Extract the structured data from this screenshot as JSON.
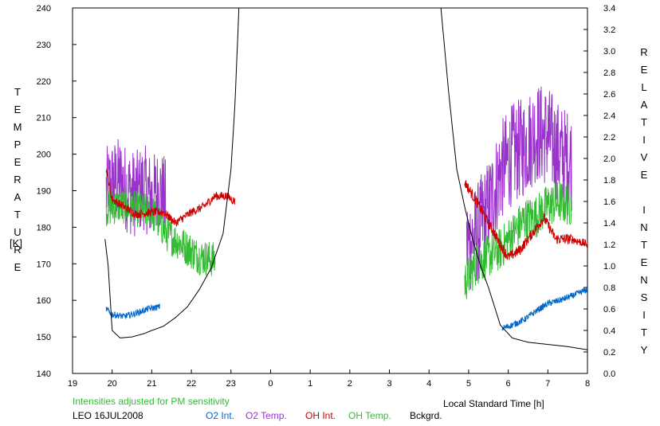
{
  "chart_data": {
    "type": "line",
    "left_axis_label_letters": [
      "T",
      "E",
      "M",
      "P",
      "E",
      "R",
      "A",
      "T",
      "U",
      "R",
      "E"
    ],
    "left_axis_unit": "[K]",
    "right_axis_label_letters": [
      "R",
      "E",
      "L",
      "A",
      "T",
      "I",
      "V",
      "E",
      "",
      "I",
      "N",
      "T",
      "E",
      "N",
      "S",
      "I",
      "T",
      "Y"
    ],
    "xlabel": "Local Standard Time [h]",
    "note": "Intensities adjusted for PM sensitivity",
    "station": "LEO 16JUL2008",
    "legend": [
      {
        "name": "O2 Int.",
        "color": "#0066cc"
      },
      {
        "name": "O2 Temp.",
        "color": "#9933cc"
      },
      {
        "name": "OH Int.",
        "color": "#cc0000"
      },
      {
        "name": "OH Temp.",
        "color": "#33bb33"
      },
      {
        "name": "Bckgrd.",
        "color": "#000000"
      }
    ],
    "x_ticks": [
      "19",
      "20",
      "21",
      "22",
      "23",
      "0",
      "1",
      "2",
      "3",
      "4",
      "5",
      "6",
      "7",
      "8"
    ],
    "x_range": [
      19,
      32
    ],
    "y_left_ticks": [
      "140",
      "150",
      "160",
      "170",
      "180",
      "190",
      "200",
      "210",
      "220",
      "230",
      "240"
    ],
    "y_left_range": [
      140,
      240
    ],
    "y_right_ticks": [
      "0.0",
      "0.2",
      "0.4",
      "0.6",
      "0.8",
      "1.0",
      "1.2",
      "1.4",
      "1.6",
      "1.8",
      "2.0",
      "2.2",
      "2.4",
      "2.6",
      "2.8",
      "3.0",
      "3.2",
      "3.4"
    ],
    "y_right_range": [
      0,
      3.4
    ],
    "series": [
      {
        "name": "O2 Temp.",
        "axis": "left",
        "color": "#9933cc",
        "segments": [
          {
            "x": [
              19.85,
              20.0,
              20.2,
              20.4,
              20.6,
              20.8,
              21.0,
              21.2,
              21.35
            ],
            "y": [
              190,
              192,
              193,
              190,
              189,
              191,
              188,
              190,
              187
            ],
            "noise": 12
          },
          {
            "x": [
              28.95,
              29.2,
              29.5,
              29.8,
              30.1,
              30.4,
              30.7,
              31.0,
              31.3,
              31.6
            ],
            "y": [
              175,
              178,
              185,
              195,
              200,
              202,
              206,
              205,
              200,
              198
            ],
            "noise": 14
          }
        ]
      },
      {
        "name": "OH Temp.",
        "axis": "left",
        "color": "#33bb33",
        "segments": [
          {
            "x": [
              19.85,
              20.2,
              20.6,
              21.0,
              21.4,
              21.8,
              22.2,
              22.6
            ],
            "y": [
              185,
              186,
              185,
              184,
              178,
              175,
              172,
              171
            ],
            "noise": 5
          },
          {
            "x": [
              28.9,
              29.2,
              29.5,
              29.8,
              30.1,
              30.4,
              30.7,
              31.0,
              31.3,
              31.6
            ],
            "y": [
              165,
              170,
              172,
              174,
              178,
              182,
              183,
              186,
              187,
              186
            ],
            "noise": 6
          }
        ]
      },
      {
        "name": "OH Int.",
        "axis": "right",
        "color": "#cc0000",
        "segments": [
          {
            "x": [
              19.85,
              20.0,
              20.3,
              20.6,
              21.0,
              21.3,
              21.6,
              22.0,
              22.3,
              22.6,
              22.9,
              23.1
            ],
            "y": [
              1.9,
              1.62,
              1.55,
              1.48,
              1.5,
              1.5,
              1.4,
              1.5,
              1.55,
              1.65,
              1.65,
              1.6
            ],
            "noise": 0.04
          },
          {
            "x": [
              28.9,
              29.2,
              29.5,
              29.8,
              30.0,
              30.3,
              30.6,
              30.9,
              31.2,
              31.5,
              31.6
            ],
            "y": [
              1.78,
              1.6,
              1.4,
              1.2,
              1.08,
              1.15,
              1.3,
              1.45,
              1.25,
              1.25,
              1.25
            ],
            "noise": 0.05
          },
          {
            "x": [
              31.6,
              32.0,
              32.3,
              32.6,
              32.9,
              33.1
            ],
            "y": [
              1.25,
              1.2,
              1.18,
              1.2,
              1.22,
              1.35
            ],
            "noise": 0.04
          }
        ]
      },
      {
        "name": "O2 Int.",
        "axis": "right",
        "color": "#0066cc",
        "segments": [
          {
            "x": [
              19.85,
              20.0,
              20.3,
              20.6,
              20.9,
              21.2
            ],
            "y": [
              0.6,
              0.55,
              0.53,
              0.56,
              0.6,
              0.62
            ],
            "noise": 0.03
          },
          {
            "x": [
              29.85,
              30.1,
              30.4,
              30.7,
              31.0,
              31.3,
              31.6,
              32.0,
              32.3,
              32.6,
              32.9,
              33.1
            ],
            "y": [
              0.42,
              0.45,
              0.5,
              0.58,
              0.65,
              0.68,
              0.72,
              0.78,
              0.82,
              0.8,
              0.75,
              0.7
            ],
            "noise": 0.03
          }
        ]
      },
      {
        "name": "Bckgrd.",
        "axis": "right",
        "color": "#000000",
        "segments": [
          {
            "x": [
              19.82,
              19.9,
              20.0,
              20.2,
              20.5,
              20.8,
              21.0,
              21.3,
              21.6,
              21.9,
              22.2,
              22.5,
              22.8,
              23.0,
              23.1,
              23.2
            ],
            "y": [
              1.25,
              1.0,
              0.4,
              0.33,
              0.34,
              0.37,
              0.4,
              0.44,
              0.52,
              0.62,
              0.78,
              0.98,
              1.3,
              1.9,
              2.5,
              3.4
            ],
            "noise": 0
          },
          {
            "x": [
              28.3,
              28.5,
              28.7,
              28.9,
              29.1,
              29.3,
              29.5,
              29.8,
              30.1,
              30.5,
              31.0,
              31.5,
              32.0,
              32.5,
              32.9,
              33.2,
              33.4,
              33.6
            ],
            "y": [
              3.4,
              2.6,
              1.9,
              1.55,
              1.25,
              1.0,
              0.8,
              0.45,
              0.33,
              0.29,
              0.27,
              0.25,
              0.22,
              0.2,
              0.18,
              0.17,
              0.2,
              0.45
            ],
            "noise": 0
          }
        ]
      }
    ]
  }
}
